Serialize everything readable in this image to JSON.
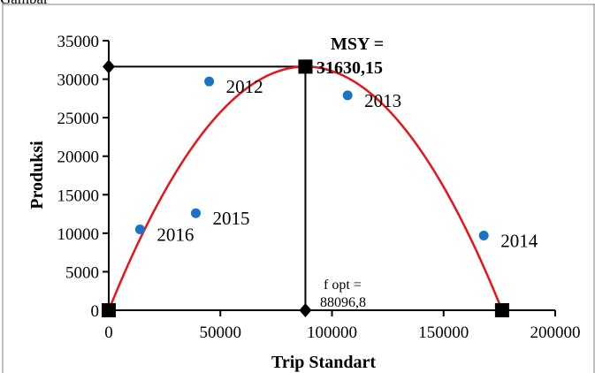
{
  "header_fragment": "Gambar",
  "chart_data": {
    "type": "scatter",
    "xlabel": "Trip Standart",
    "ylabel": "Produksi",
    "xlim": [
      0,
      200000
    ],
    "ylim": [
      0,
      35000
    ],
    "x_ticks": [
      0,
      50000,
      100000,
      150000,
      200000
    ],
    "y_ticks": [
      0,
      5000,
      10000,
      15000,
      20000,
      25000,
      30000,
      35000
    ],
    "x_tick_labels": [
      "0",
      "50000",
      "100000",
      "150000",
      "200000"
    ],
    "y_tick_labels": [
      "0",
      "5000",
      "10000",
      "15000",
      "20000",
      "25000",
      "30000",
      "35000"
    ],
    "grid": false,
    "points": [
      {
        "label": "2012",
        "x": 45000,
        "y": 29700
      },
      {
        "label": "2013",
        "x": 107000,
        "y": 27900
      },
      {
        "label": "2014",
        "x": 168000,
        "y": 9700
      },
      {
        "label": "2015",
        "x": 39000,
        "y": 12600
      },
      {
        "label": "2016",
        "x": 14000,
        "y": 10500
      }
    ],
    "curve": {
      "kind": "parabola",
      "color": "#e8141a",
      "vertex_x": 88096.8,
      "vertex_y": 31630.15,
      "roots": [
        0,
        176193.6
      ]
    },
    "square_markers": [
      {
        "x": 0,
        "y": 0
      },
      {
        "x": 88096.8,
        "y": 31630.15
      },
      {
        "x": 176193.6,
        "y": 0
      }
    ],
    "diamond_markers": [
      {
        "x": 0,
        "y": 31630.15
      },
      {
        "x": 88096.8,
        "y": 0
      }
    ],
    "annotations": {
      "msy_line1": "MSY =",
      "msy_line2": "31630,15",
      "fopt_line1": "f opt =",
      "fopt_line2": "88096,8"
    },
    "colors": {
      "points": "#1a73c6",
      "axes": "#000000"
    }
  }
}
